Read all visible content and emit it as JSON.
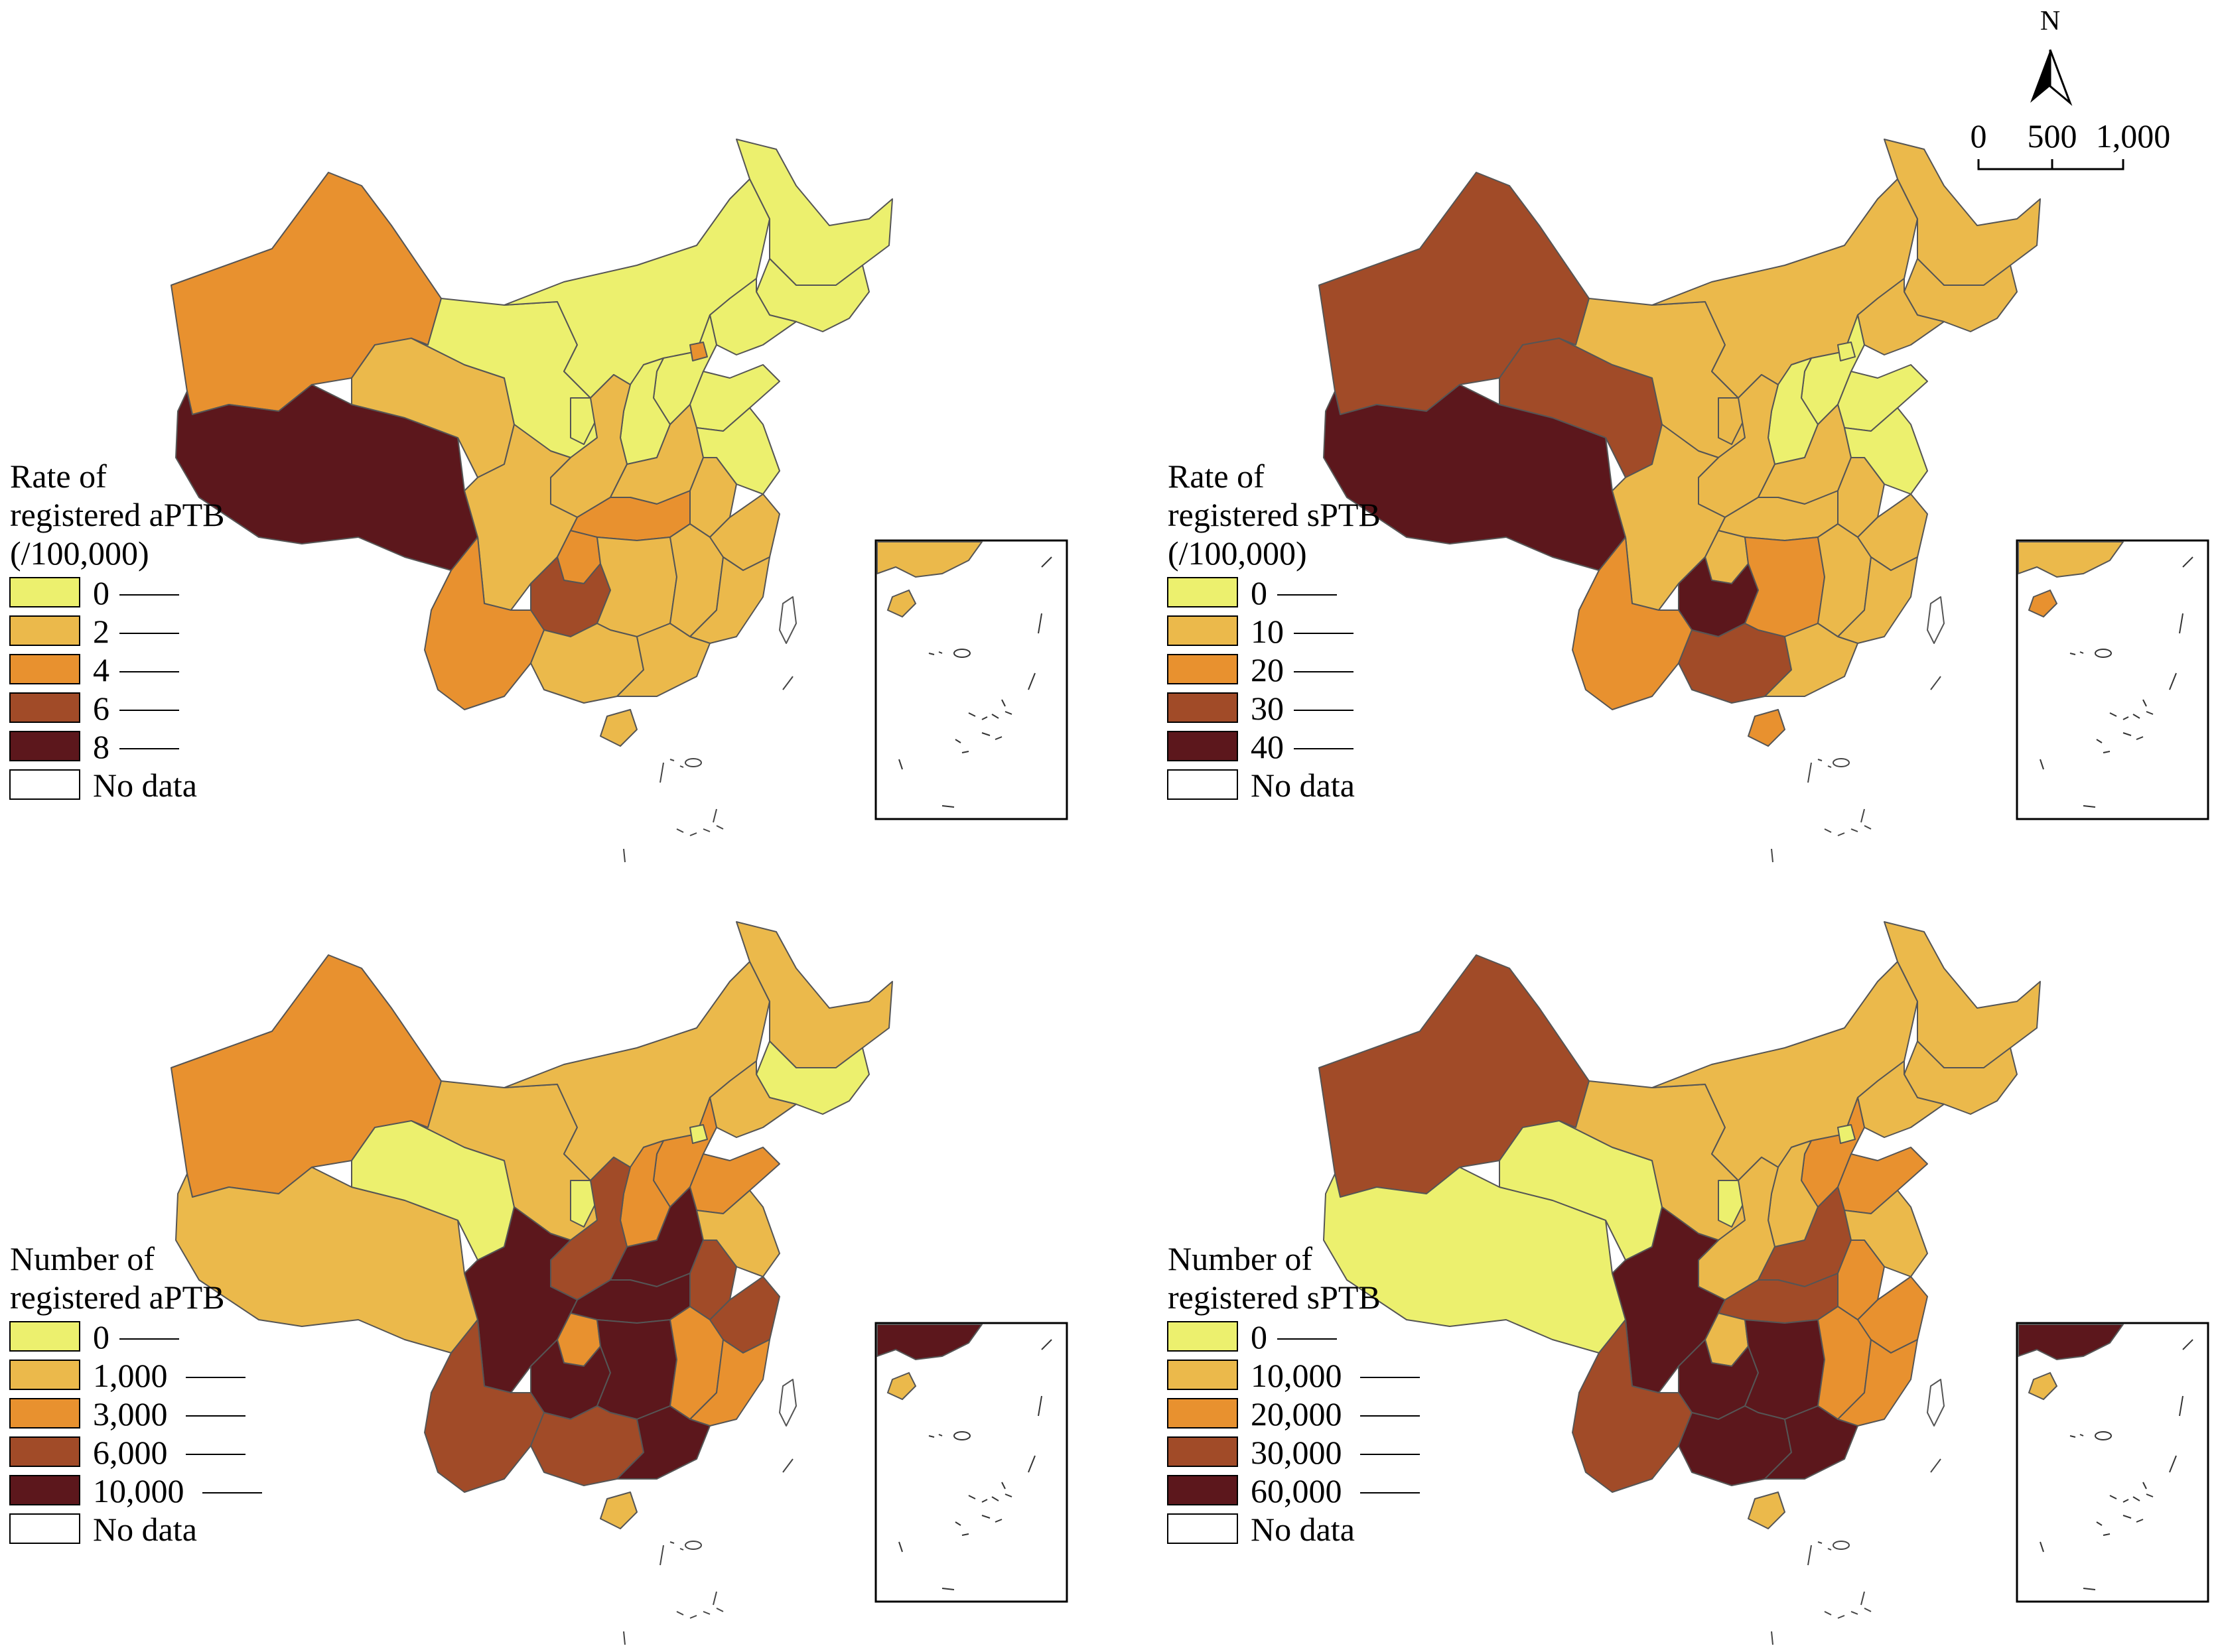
{
  "colors": {
    "c0": "#ECF06E",
    "c1": "#EBB94B",
    "c2": "#E8912F",
    "c3": "#A14B28",
    "c4": "#5C171C",
    "border": "#555555",
    "nodata": "#FFFFFF"
  },
  "compass": {
    "north_label": "N"
  },
  "scale_bar": {
    "labels": [
      "0",
      "500",
      "1,000"
    ]
  },
  "panels": [
    {
      "id": "rate-aptb",
      "legend_title": [
        "Rate of",
        "registered aPTB",
        "(/100,000)"
      ],
      "legend_items": [
        "0",
        "2",
        "4",
        "6",
        "8"
      ],
      "no_data_label": "No data",
      "regions": {
        "xinjiang": "c2",
        "tibet": "c4",
        "qinghai": "c1",
        "gansu": "c0",
        "inner-mongolia": "c0",
        "heilongjiang": "c0",
        "jilin": "c0",
        "liaoning": "c0",
        "hebei": "c0",
        "beijing": "c2",
        "shanxi": "c0",
        "shaanxi": "c1",
        "ningxia": "c0",
        "henan": "c1",
        "shandong": "c0",
        "jiangsu": "c0",
        "anhui": "c1",
        "hubei": "c2",
        "chongqing": "c2",
        "sichuan": "c1",
        "guizhou": "c3",
        "yunnan": "c2",
        "guangxi": "c1",
        "hunan": "c1",
        "jiangxi": "c1",
        "zhejiang": "c1",
        "fujian": "c1",
        "guangdong": "c1",
        "hainan": "c1",
        "taiwan": "nodata"
      }
    },
    {
      "id": "rate-sptb",
      "legend_title": [
        "Rate of",
        "registered sPTB",
        "(/100,000)"
      ],
      "legend_items": [
        "0",
        "10",
        "20",
        "30",
        "40"
      ],
      "no_data_label": "No data",
      "regions": {
        "xinjiang": "c3",
        "tibet": "c4",
        "qinghai": "c3",
        "gansu": "c1",
        "inner-mongolia": "c1",
        "heilongjiang": "c1",
        "jilin": "c1",
        "liaoning": "c1",
        "hebei": "c0",
        "beijing": "c0",
        "shanxi": "c0",
        "shaanxi": "c1",
        "ningxia": "c1",
        "henan": "c1",
        "shandong": "c0",
        "jiangsu": "c0",
        "anhui": "c1",
        "hubei": "c1",
        "chongqing": "c1",
        "sichuan": "c1",
        "guizhou": "c4",
        "yunnan": "c2",
        "guangxi": "c3",
        "hunan": "c2",
        "jiangxi": "c1",
        "zhejiang": "c1",
        "fujian": "c1",
        "guangdong": "c1",
        "hainan": "c2",
        "taiwan": "nodata"
      }
    },
    {
      "id": "number-aptb",
      "legend_title": [
        "Number of",
        "registered aPTB"
      ],
      "legend_items": [
        "0",
        "1,000",
        "3,000",
        "6,000",
        "10,000"
      ],
      "no_data_label": "No data",
      "regions": {
        "xinjiang": "c2",
        "tibet": "c1",
        "qinghai": "c0",
        "gansu": "c1",
        "inner-mongolia": "c1",
        "heilongjiang": "c1",
        "jilin": "c0",
        "liaoning": "c1",
        "hebei": "c2",
        "beijing": "c0",
        "shanxi": "c2",
        "shaanxi": "c3",
        "ningxia": "c0",
        "henan": "c4",
        "shandong": "c2",
        "jiangsu": "c1",
        "anhui": "c3",
        "hubei": "c4",
        "chongqing": "c2",
        "sichuan": "c4",
        "guizhou": "c4",
        "yunnan": "c3",
        "guangxi": "c3",
        "hunan": "c4",
        "jiangxi": "c2",
        "zhejiang": "c3",
        "fujian": "c2",
        "guangdong": "c4",
        "hainan": "c1",
        "taiwan": "nodata"
      }
    },
    {
      "id": "number-sptb",
      "legend_title": [
        "Number of",
        "registered sPTB"
      ],
      "legend_items": [
        "0",
        "10,000",
        "20,000",
        "30,000",
        "60,000"
      ],
      "no_data_label": "No data",
      "regions": {
        "xinjiang": "c3",
        "tibet": "c0",
        "qinghai": "c0",
        "gansu": "c1",
        "inner-mongolia": "c1",
        "heilongjiang": "c1",
        "jilin": "c1",
        "liaoning": "c1",
        "hebei": "c2",
        "beijing": "c0",
        "shanxi": "c1",
        "shaanxi": "c1",
        "ningxia": "c0",
        "henan": "c3",
        "shandong": "c2",
        "jiangsu": "c1",
        "anhui": "c2",
        "hubei": "c3",
        "chongqing": "c1",
        "sichuan": "c4",
        "guizhou": "c4",
        "yunnan": "c3",
        "guangxi": "c4",
        "hunan": "c4",
        "jiangxi": "c2",
        "zhejiang": "c2",
        "fujian": "c2",
        "guangdong": "c4",
        "hainan": "c1",
        "taiwan": "nodata"
      }
    }
  ]
}
